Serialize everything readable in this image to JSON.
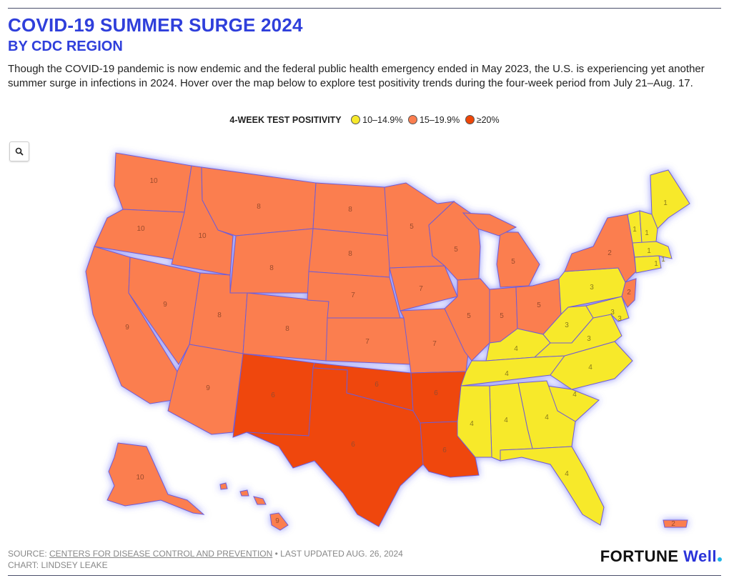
{
  "header": {
    "title": "COVID-19 SUMMER SURGE 2024",
    "subtitle": "BY CDC REGION",
    "description": "Though the COVID-19 pandemic is now endemic and the federal public health emergency ended in May 2023, the U.S. is experiencing yet another summer surge in infections in 2024. Hover over the map below to explore test positivity trends during the four-week period from July 21–Aug. 17."
  },
  "legend": {
    "title": "4-WEEK TEST POSITIVITY",
    "items": [
      {
        "label": "10–14.9%",
        "color": "#f7e92b"
      },
      {
        "label": "15–19.9%",
        "color": "#fb7e4f"
      },
      {
        "label": "≥20%",
        "color": "#ef4607"
      }
    ]
  },
  "controls": {
    "zoom_icon": "search-icon"
  },
  "colors": {
    "yellow": "#f7e92b",
    "orange": "#fb7e4f",
    "red": "#ef4607",
    "glow": "#3b3ff2",
    "accent": "#2f3fdb"
  },
  "map_labels": [
    {
      "region": "1",
      "color": "yellow",
      "count": 6
    },
    {
      "region": "2",
      "color": "orange",
      "count": 2
    },
    {
      "region": "3",
      "color": "yellow",
      "count": 5
    },
    {
      "region": "4",
      "color": "yellow",
      "count": 8
    },
    {
      "region": "5",
      "color": "orange",
      "count": 6
    },
    {
      "region": "6",
      "color": "red",
      "count": 5
    },
    {
      "region": "7",
      "color": "orange",
      "count": 4
    },
    {
      "region": "8",
      "color": "orange",
      "count": 6
    },
    {
      "region": "9",
      "color": "orange",
      "count": 4
    },
    {
      "region": "10",
      "color": "orange",
      "count": 4
    }
  ],
  "footer": {
    "source_prefix": "SOURCE: ",
    "source_link": "CENTERS FOR DISEASE CONTROL AND PREVENTION",
    "updated": " • LAST UPDATED AUG. 26, 2024",
    "credit": "CHART: LINDSEY LEAKE"
  },
  "brand": {
    "part1": "FORTUNE",
    "part2": "Well"
  }
}
